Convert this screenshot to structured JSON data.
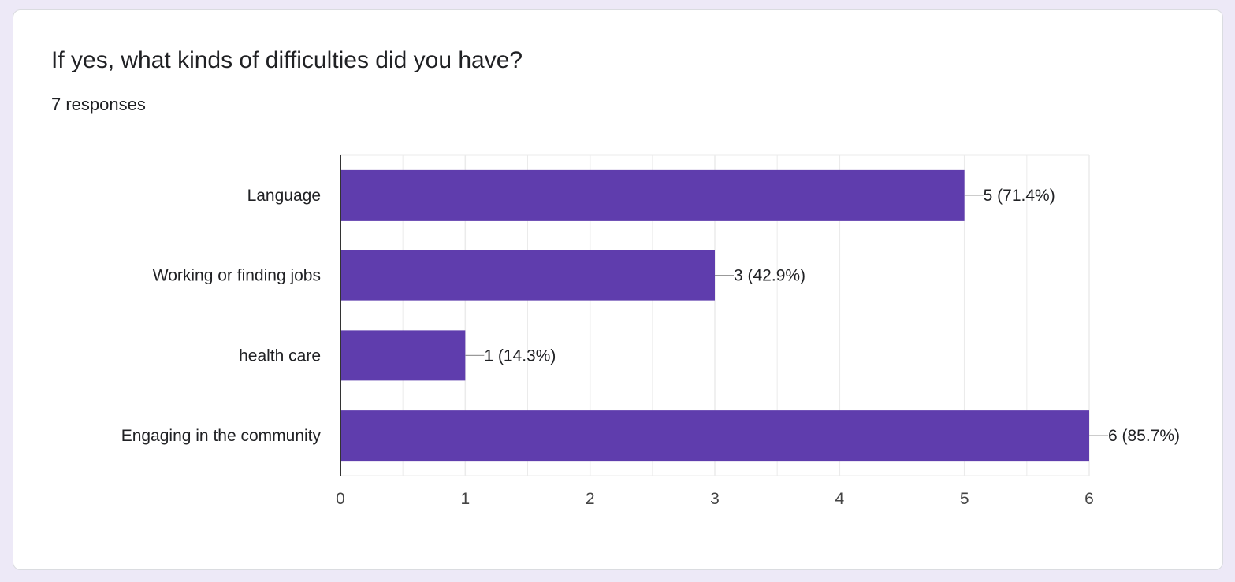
{
  "question": {
    "title": "If yes, what kinds of difficulties did you have?",
    "responses": "7 responses"
  },
  "colors": {
    "bar": "#5f3dad",
    "grid": "#ebebeb",
    "axis": "#333333",
    "leader": "#999999",
    "text": "#202124",
    "tick": "#444444"
  },
  "chart_data": {
    "type": "bar",
    "orientation": "horizontal",
    "categories": [
      "Language",
      "Working or finding jobs",
      "health care",
      "Engaging in the community"
    ],
    "values": [
      5,
      3,
      1,
      6
    ],
    "data_labels": [
      "5 (71.4%)",
      "3 (42.9%)",
      "1 (14.3%)",
      "6 (85.7%)"
    ],
    "xlim": [
      0,
      6
    ],
    "xticks": [
      "0",
      "1",
      "2",
      "3",
      "4",
      "5",
      "6"
    ],
    "grid": true,
    "xlabel": "",
    "ylabel": ""
  }
}
